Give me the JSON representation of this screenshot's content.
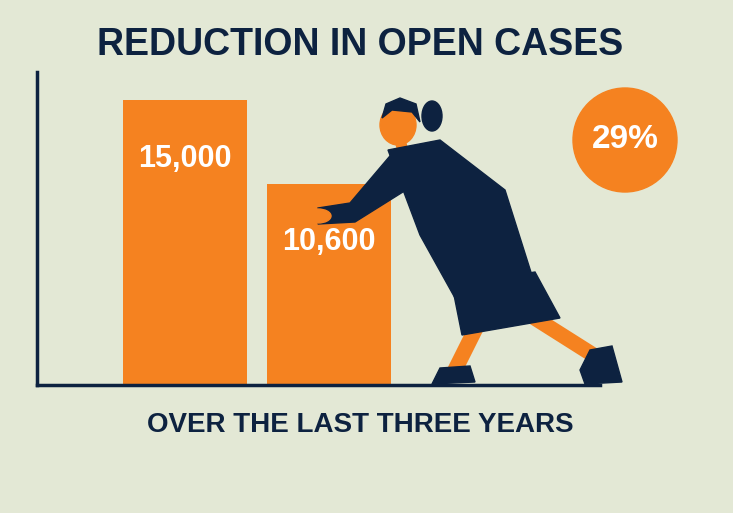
{
  "chart_data": {
    "type": "bar",
    "title": "REDUCTION IN OPEN CASES",
    "subtitle": "OVER THE LAST THREE YEARS",
    "annotation": "29%",
    "categories": [
      null,
      null
    ],
    "values": [
      15000,
      10600
    ],
    "value_labels": [
      "15,000",
      "10,600"
    ],
    "color": "#f58220",
    "ylim": [
      0,
      16500
    ],
    "yticks": [],
    "data_labels": true,
    "tick_labels": false,
    "grid": false
  }
}
